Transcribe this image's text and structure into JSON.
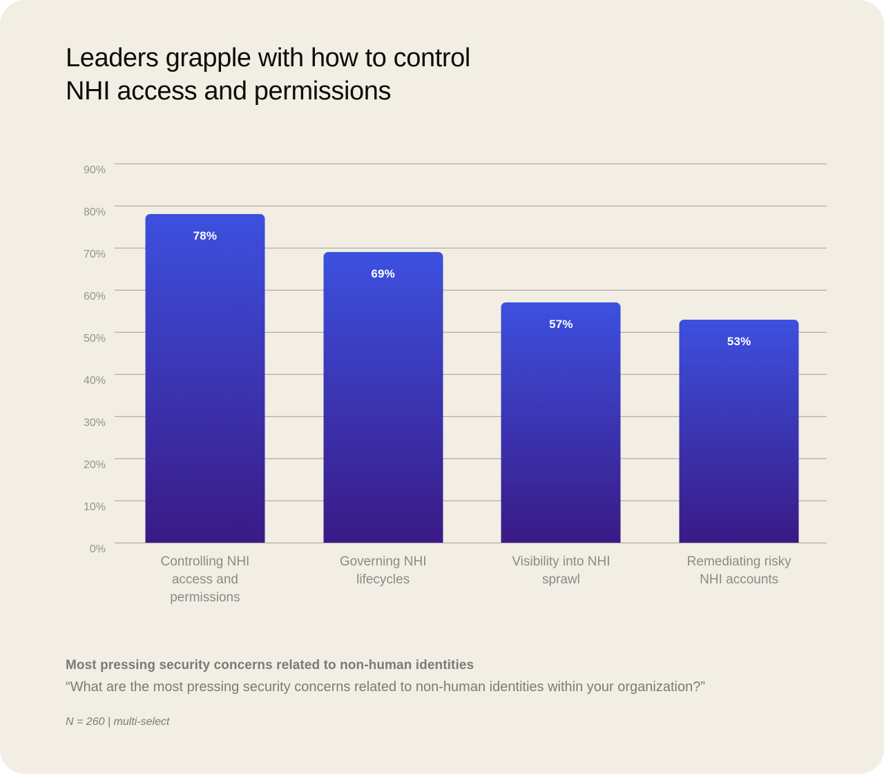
{
  "card": {
    "background": "#F2EEE3",
    "page_background": "#FFFFFF"
  },
  "title": {
    "text": "Leaders grapple with how to control\nNHI access and permissions",
    "color": "#0D0D0D"
  },
  "chart_data": {
    "type": "bar",
    "title": "Leaders grapple with how to control NHI access and permissions",
    "categories": [
      "Controlling NHI access and permissions",
      "Governing NHI lifecycles",
      "Visibility into NHI sprawl",
      "Remediating risky NHI accounts"
    ],
    "category_lines": [
      "Controlling NHI\naccess and\npermissions",
      "Governing NHI\nlifecycles",
      "Visibility into NHI\nsprawl",
      "Remediating risky\nNHI accounts"
    ],
    "values": [
      78,
      69,
      57,
      53
    ],
    "data_labels": [
      "78%",
      "69%",
      "57%",
      "53%"
    ],
    "xlabel": "",
    "ylabel": "",
    "y_axis": {
      "min": 0,
      "max": 90,
      "step": 10,
      "tick_labels": [
        "0%",
        "10%",
        "20%",
        "30%",
        "40%",
        "50%",
        "60%",
        "70%",
        "80%",
        "90%"
      ]
    },
    "grid": true,
    "legend": false,
    "colors": {
      "bar_gradient_top": "#3C50DF",
      "bar_gradient_bottom": "#3A1A86",
      "gridline": "#9F9C96",
      "tick_text": "#95928C",
      "category_text": "#8B898B",
      "data_label_text": "#FFFFFF"
    }
  },
  "footer": {
    "heading": "Most pressing security concerns related to non-human identities",
    "question": "“What are the most pressing security concerns related to non-human identities within your organization?”",
    "note": "N = 260 | multi-select",
    "text_color": "#7B797B"
  }
}
